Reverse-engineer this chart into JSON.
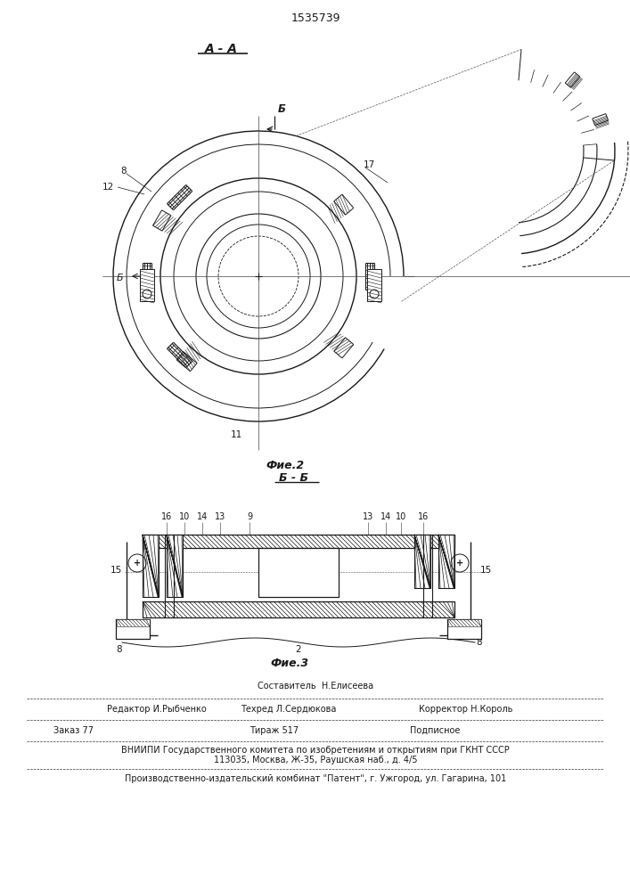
{
  "patent_number": "1535739",
  "bg_color": "#ffffff",
  "line_color": "#1a1a1a",
  "fig2_caption": "Фие.2",
  "fig3_caption": "Фие.3",
  "aa_label": "А - А",
  "bb_label": "Б - Б",
  "b_arrow_label": "Б",
  "b_center_label": "Б",
  "label_8": "8",
  "label_11": "11",
  "label_12": "12",
  "label_17": "17",
  "label_2": "2",
  "label_9": "9",
  "label_10": "10",
  "label_13": "13",
  "label_14": "14",
  "label_15": "15",
  "label_16": "16",
  "footer_line0": "Составитель  Н.Елисеева",
  "footer_line1a": "Редактор И.Рыбченко",
  "footer_line1b": "Техред Л.Сердюкова",
  "footer_line1c": "Корректор Н.Король",
  "footer_line2a": "Заказ 77",
  "footer_line2b": "Тираж 517",
  "footer_line2c": "Подписное",
  "footer_line3": "ВНИИПИ Государственного комитета по изобретениям и открытиям при ГКНТ СССР",
  "footer_line4": "113035, Москва, Ж-35, Раушская наб., д. 4/5",
  "footer_line5": "Производственно-издательский комбинат \"Патент\", г. Ужгород, ул. Гагарина, 101"
}
